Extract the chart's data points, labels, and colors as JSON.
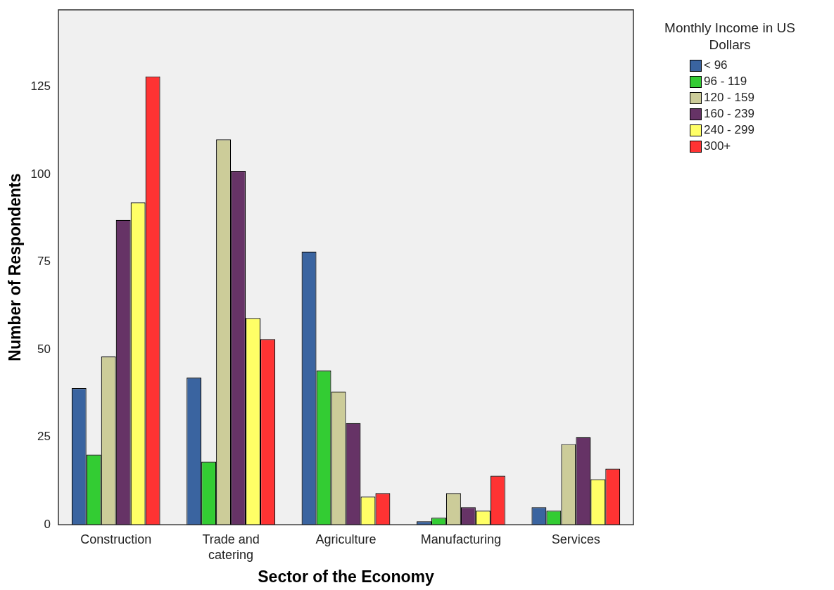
{
  "chart_data": {
    "type": "bar",
    "xlabel": "Sector of the Economy",
    "ylabel": "Number of Respondents",
    "legend_title": "Monthly Income in US Dollars",
    "categories": [
      "Construction",
      "Trade and catering",
      "Agriculture",
      "Manufacturing",
      "Services"
    ],
    "series": [
      {
        "name": "< 96",
        "color": "#3a64a0",
        "values": [
          39,
          42,
          78,
          1,
          5
        ]
      },
      {
        "name": "96 - 119",
        "color": "#33cc33",
        "values": [
          20,
          18,
          44,
          2,
          4
        ]
      },
      {
        "name": "120 - 159",
        "color": "#cccc99",
        "values": [
          48,
          110,
          38,
          9,
          23
        ]
      },
      {
        "name": "160 - 239",
        "color": "#663366",
        "values": [
          87,
          101,
          29,
          5,
          25
        ]
      },
      {
        "name": "240 - 299",
        "color": "#ffff66",
        "values": [
          92,
          59,
          8,
          4,
          13
        ]
      },
      {
        "name": "300+",
        "color": "#ff3333",
        "values": [
          128,
          53,
          9,
          14,
          16
        ]
      }
    ],
    "ylim": [
      0,
      147
    ],
    "yticks": [
      0,
      25,
      50,
      75,
      100,
      125
    ],
    "grid": false,
    "legend": "right"
  }
}
